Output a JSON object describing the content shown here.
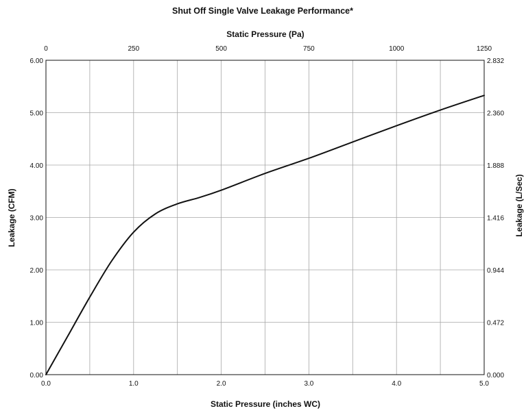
{
  "chart_data": {
    "type": "line",
    "title": "Shut Off Single Valve Leakage Performance*",
    "xlabel": "Static Pressure (inches WC)",
    "x2label": "Static Pressure (Pa)",
    "ylabel": "Leakage (CFM)",
    "y2label": "Leakage (L/Sec)",
    "xlim": [
      0,
      5
    ],
    "ylim": [
      0,
      6
    ],
    "x2lim": [
      0,
      1250
    ],
    "y2lim": [
      0,
      2.832
    ],
    "x_ticks": [
      "0.0",
      "1.0",
      "2.0",
      "3.0",
      "4.0",
      "5.0"
    ],
    "x2_ticks": [
      "0",
      "250",
      "500",
      "750",
      "1000",
      "1250"
    ],
    "y_ticks": [
      "0.00",
      "1.00",
      "2.00",
      "3.00",
      "4.00",
      "5.00",
      "6.00"
    ],
    "y2_ticks": [
      "0.000",
      "0.472",
      "0.944",
      "1.416",
      "1.888",
      "2.360",
      "2.832"
    ],
    "grid": true,
    "line_color": "#111111",
    "grid_color": "#a6a6a6",
    "series": [
      {
        "x": [
          0.0,
          0.25,
          0.5,
          0.75,
          1.0,
          1.25,
          1.5,
          1.75,
          2.0,
          2.5,
          3.0,
          3.5,
          4.0,
          4.5,
          5.0
        ],
        "y": [
          0.0,
          0.74,
          1.48,
          2.17,
          2.72,
          3.07,
          3.26,
          3.38,
          3.52,
          3.84,
          4.13,
          4.44,
          4.75,
          5.05,
          5.33
        ]
      }
    ]
  }
}
